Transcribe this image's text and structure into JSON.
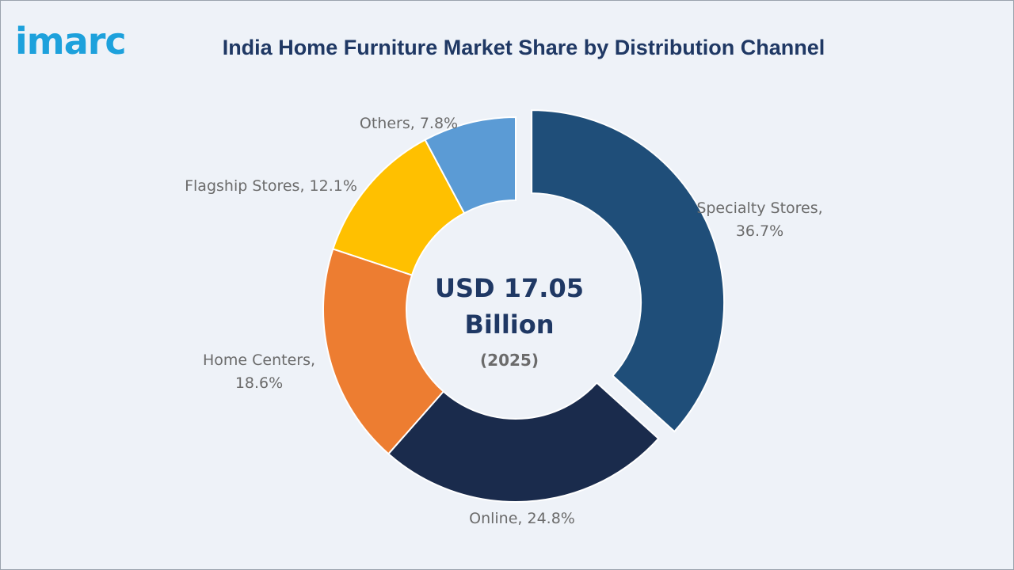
{
  "brand": {
    "logo_text": "imarc",
    "logo_color": "#1da1dc"
  },
  "chart_data": {
    "type": "pie",
    "variant": "donut",
    "title": "India Home Furniture Market Share by Distribution Channel",
    "center_value_line1": "USD 17.05",
    "center_value_line2": "Billion",
    "center_year": "(2025)",
    "slices": [
      {
        "label_line1": "Specialty Stores,",
        "label_line2": "36.7%",
        "value": 36.7,
        "color": "#1f4e79",
        "exploded": true
      },
      {
        "label_line1": "Online, 24.8%",
        "label_line2": "",
        "value": 24.8,
        "color": "#1a2b4c",
        "exploded": false
      },
      {
        "label_line1": "Home Centers,",
        "label_line2": "18.6%",
        "value": 18.6,
        "color": "#ed7d31",
        "exploded": false
      },
      {
        "label_line1": "Flagship Stores, 12.1%",
        "label_line2": "",
        "value": 12.1,
        "color": "#ffc000",
        "exploded": false
      },
      {
        "label_line1": "Others, 7.8%",
        "label_line2": "",
        "value": 7.8,
        "color": "#5b9bd5",
        "exploded": false
      }
    ]
  }
}
